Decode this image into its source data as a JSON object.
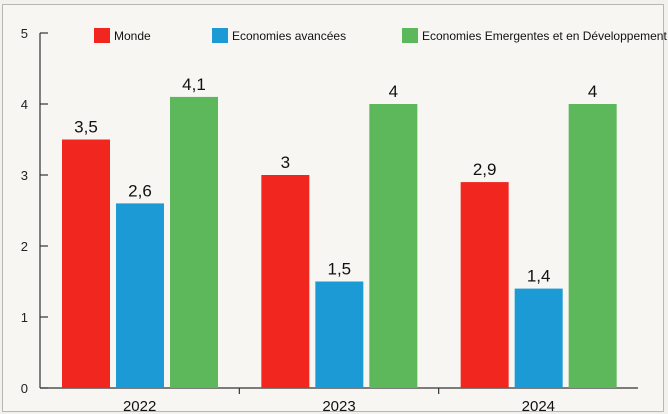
{
  "chart_data": {
    "type": "bar",
    "categories": [
      "2022",
      "2023",
      "2024"
    ],
    "series": [
      {
        "name": "Monde",
        "color": "#f0261f",
        "values": [
          3.5,
          3,
          2.9
        ],
        "labels": [
          "3,5",
          "3",
          "2,9"
        ]
      },
      {
        "name": "Economies avancées",
        "color": "#1b9ad6",
        "values": [
          2.6,
          1.5,
          1.4
        ],
        "labels": [
          "2,6",
          "1,5",
          "1,4"
        ]
      },
      {
        "name": "Economies Emergentes et en Développement",
        "color": "#5cb85a",
        "values": [
          4.1,
          4,
          4
        ],
        "labels": [
          "4,1",
          "4",
          "4"
        ]
      }
    ],
    "yticks": [
      "0",
      "1",
      "2",
      "3",
      "4",
      "5"
    ],
    "ylim": [
      0,
      5
    ],
    "title": "",
    "xlabel": "",
    "ylabel": "",
    "legend_position": "top",
    "grid": false
  }
}
